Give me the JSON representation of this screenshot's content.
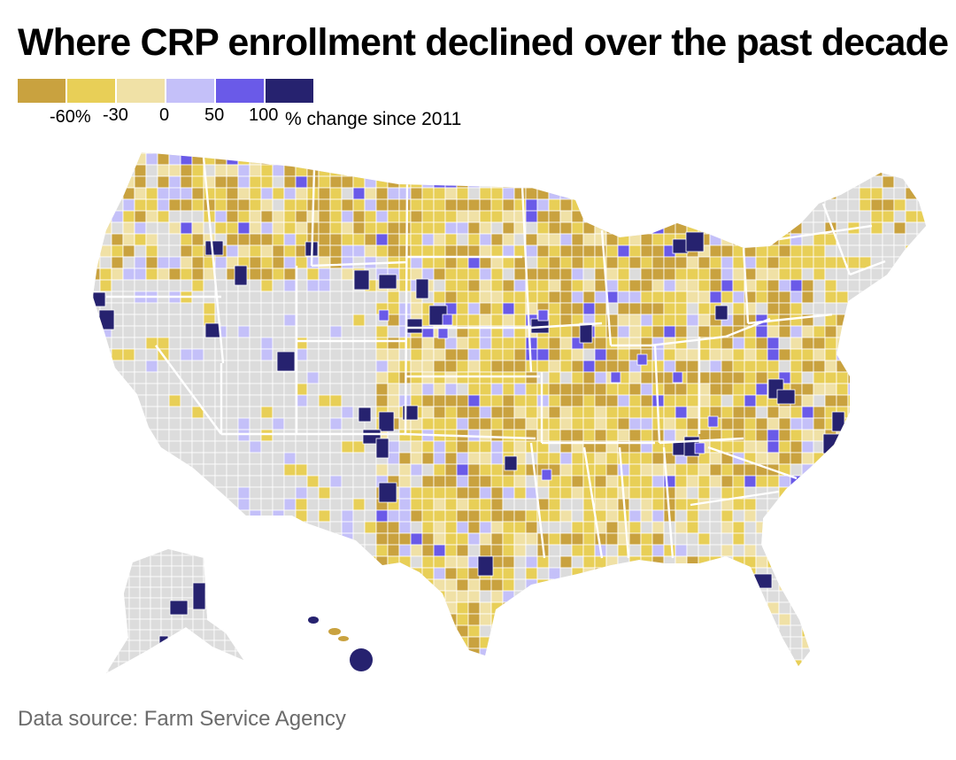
{
  "title": "Where CRP enrollment declined over the past decade",
  "legend": {
    "colors": [
      "#c9a23f",
      "#e8cf57",
      "#f0e1a6",
      "#c4c0f9",
      "#6a5ae8",
      "#26226f"
    ],
    "ticks": [
      "-60%",
      "-30",
      "0",
      "50",
      "100"
    ],
    "caption": "% change since 2011"
  },
  "map": {
    "no_data_color": "#dcdcdc",
    "border_color": "#ffffff",
    "regions": [
      "Contiguous United States",
      "Alaska",
      "Hawaii"
    ]
  },
  "source": "Data source: Farm Service Agency"
}
